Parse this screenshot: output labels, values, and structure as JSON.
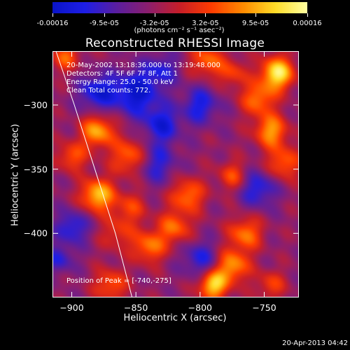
{
  "colorbar": {
    "tick_labels": [
      "-0.00016",
      "-9.5e-05",
      "-3.2e-05",
      "3.2e-05",
      "9.5e-05",
      "0.00016"
    ],
    "tick_values": [
      -0.00016,
      -9.5e-05,
      -3.2e-05,
      3.2e-05,
      9.5e-05,
      0.00016
    ],
    "unit": "(photons cm⁻² s⁻¹ asec⁻²)",
    "range": [
      -0.00016,
      0.00016
    ],
    "colors": [
      "#0a14c8",
      "#1e1ee6",
      "#5a1ea0",
      "#8c1e6e",
      "#c81e28",
      "#ff3c00",
      "#ff8c00",
      "#ffdc28",
      "#ffffa0"
    ]
  },
  "chart_data": {
    "type": "heatmap",
    "title": "Reconstructed RHESSI Image",
    "xlabel": "Heliocentric X (arcsec)",
    "ylabel": "Heliocentric Y (arcsec)",
    "xlim": [
      -915,
      -723
    ],
    "ylim": [
      -450,
      -258
    ],
    "x_ticks": [
      -900,
      -850,
      -800,
      -750
    ],
    "y_ticks": [
      -300,
      -350,
      -400
    ],
    "info_lines": [
      "20-May-2002 13:18:36.000 to 13:19:48.000",
      "Detectors: 4F 5F 6F 7F 8F, Att 1",
      "Energy Range: 25.0 - 50.0 keV",
      "Clean    Total counts: 772."
    ],
    "peak_label": "Position of Peak = [-740,-275]",
    "peak": [
      -740,
      -275
    ],
    "limb_curve": [
      [
        -913,
        -256
      ],
      [
        -898,
        -300
      ],
      [
        -882,
        -350
      ],
      [
        -866,
        -400
      ],
      [
        -853,
        -450
      ]
    ],
    "blobs": [
      [
        -905,
        -262,
        0.5,
        8
      ],
      [
        -880,
        -290,
        -0.6,
        10
      ],
      [
        -850,
        -290,
        -0.7,
        12
      ],
      [
        -830,
        -272,
        -0.4,
        9
      ],
      [
        -795,
        -265,
        0.55,
        9
      ],
      [
        -775,
        -275,
        0.4,
        8
      ],
      [
        -740,
        -275,
        1.0,
        9
      ],
      [
        -755,
        -295,
        0.6,
        9
      ],
      [
        -745,
        -320,
        0.7,
        9
      ],
      [
        -800,
        -300,
        -0.5,
        10
      ],
      [
        -880,
        -320,
        0.75,
        9
      ],
      [
        -855,
        -340,
        0.6,
        10
      ],
      [
        -835,
        -345,
        -0.45,
        11
      ],
      [
        -900,
        -340,
        0.5,
        8
      ],
      [
        -810,
        -370,
        0.6,
        9
      ],
      [
        -775,
        -355,
        0.45,
        8
      ],
      [
        -755,
        -365,
        -0.5,
        10
      ],
      [
        -880,
        -370,
        0.85,
        9
      ],
      [
        -855,
        -380,
        0.4,
        9
      ],
      [
        -820,
        -395,
        0.55,
        9
      ],
      [
        -765,
        -400,
        0.6,
        9
      ],
      [
        -900,
        -395,
        -0.5,
        9
      ],
      [
        -865,
        -400,
        0.35,
        9
      ],
      [
        -840,
        -410,
        0.6,
        9
      ],
      [
        -800,
        -420,
        -0.45,
        10
      ],
      [
        -775,
        -425,
        0.7,
        9
      ],
      [
        -790,
        -440,
        0.9,
        8
      ],
      [
        -870,
        -440,
        0.5,
        9
      ],
      [
        -910,
        -420,
        -0.4,
        8
      ],
      [
        -745,
        -440,
        0.4,
        8
      ],
      [
        -735,
        -345,
        0.55,
        9
      ],
      [
        -830,
        -315,
        -0.55,
        10
      ]
    ]
  },
  "timestamp": "20-Apr-2013 04:42"
}
